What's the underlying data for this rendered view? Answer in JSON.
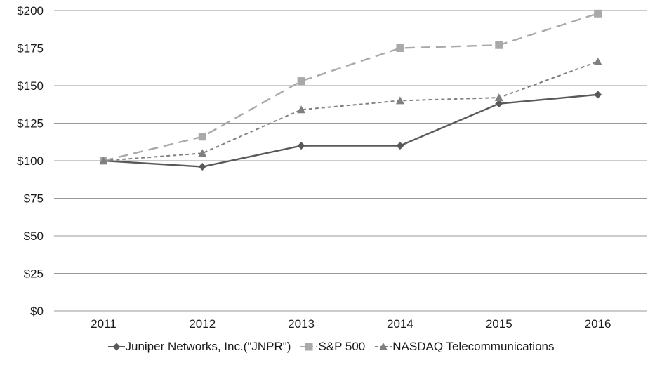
{
  "chart_data": {
    "type": "line",
    "title": "",
    "x": [
      "2011",
      "2012",
      "2013",
      "2014",
      "2015",
      "2016"
    ],
    "xtick_labels": [
      "2011",
      "2012",
      "2013",
      "2014",
      "2015",
      "2016"
    ],
    "ytick_labels": [
      "$0",
      "$25",
      "$50",
      "$75",
      "$100",
      "$125",
      "$150",
      "$175",
      "$200"
    ],
    "ylim": [
      0,
      200
    ],
    "ytick_step": 25,
    "grid": "horizontal-only",
    "grid_color": "#999999",
    "axis_text_color": "#1a1a1a",
    "background_color": "#ffffff",
    "legend_position": "bottom-center",
    "series": [
      {
        "id": "jnpr",
        "name": "Juniper Networks, Inc.(\"JNPR\")",
        "values": [
          100,
          96,
          110,
          110,
          138,
          144
        ],
        "color": "#595959",
        "dash": "solid",
        "marker": "diamond",
        "line_width": 2.4
      },
      {
        "id": "sp500",
        "name": "S&P 500",
        "values": [
          100,
          116,
          153,
          175,
          177,
          198
        ],
        "color": "#a9a9a9",
        "dash": "long-dash",
        "marker": "square",
        "line_width": 2.4
      },
      {
        "id": "nasdaq-telecom",
        "name": "NASDAQ Telecommunications",
        "values": [
          100,
          105,
          134,
          140,
          142,
          166
        ],
        "color": "#7f7f7f",
        "dash": "short-dash",
        "marker": "triangle",
        "line_width": 2
      }
    ]
  }
}
